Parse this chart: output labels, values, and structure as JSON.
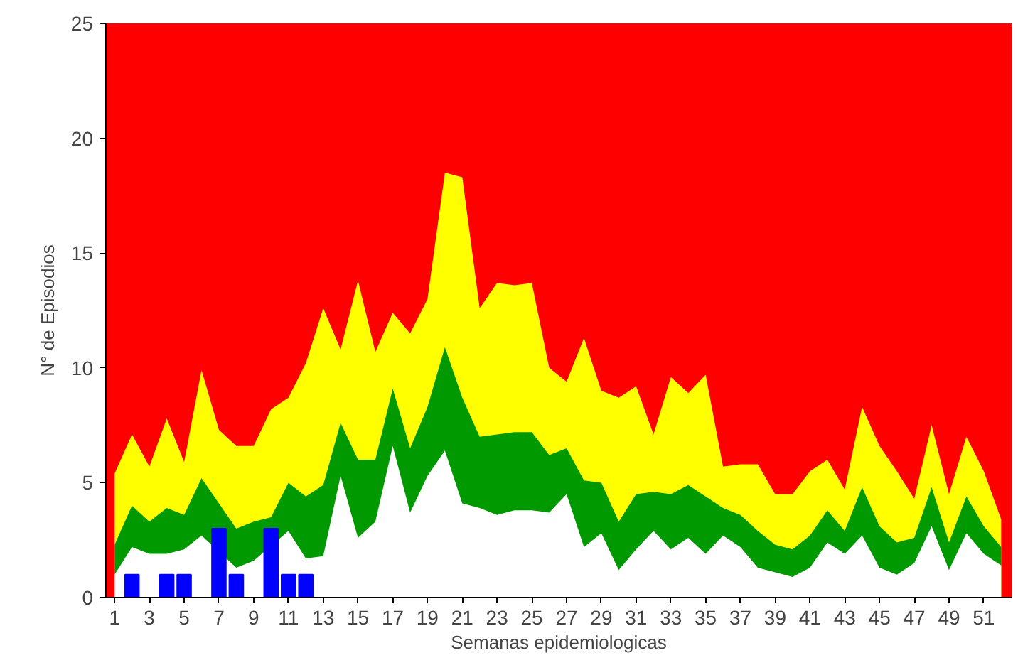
{
  "chart_data": {
    "type": "area",
    "xlabel": "Semanas epidemiologicas",
    "ylabel": "N° de Episodios",
    "x": [
      1,
      2,
      3,
      4,
      5,
      6,
      7,
      8,
      9,
      10,
      11,
      12,
      13,
      14,
      15,
      16,
      17,
      18,
      19,
      20,
      21,
      22,
      23,
      24,
      25,
      26,
      27,
      28,
      29,
      30,
      31,
      32,
      33,
      34,
      35,
      36,
      37,
      38,
      39,
      40,
      41,
      42,
      43,
      44,
      45,
      46,
      47,
      48,
      49,
      50,
      51,
      52
    ],
    "series": [
      {
        "color": "#ffff00",
        "values": [
          5.4,
          7.1,
          5.7,
          7.8,
          5.9,
          9.9,
          7.3,
          6.6,
          6.6,
          8.2,
          8.7,
          10.2,
          12.6,
          10.8,
          13.8,
          10.7,
          12.4,
          11.5,
          13.0,
          18.5,
          18.3,
          12.6,
          13.7,
          13.6,
          13.7,
          10.0,
          9.4,
          11.3,
          9.0,
          8.7,
          9.2,
          7.1,
          9.6,
          8.9,
          9.7,
          5.7,
          5.8,
          5.8,
          4.5,
          4.5,
          5.5,
          6.0,
          4.7,
          8.3,
          6.6,
          5.5,
          4.3,
          7.5,
          4.5,
          7.0,
          5.5,
          3.4
        ]
      },
      {
        "color": "#009900",
        "values": [
          2.3,
          4.0,
          3.3,
          3.9,
          3.6,
          5.2,
          4.1,
          3.0,
          3.3,
          3.5,
          5.0,
          4.4,
          4.9,
          7.6,
          6.0,
          6.0,
          9.1,
          6.5,
          8.3,
          10.9,
          8.7,
          7.0,
          7.1,
          7.2,
          7.2,
          6.2,
          6.5,
          5.1,
          5.0,
          3.3,
          4.5,
          4.6,
          4.5,
          4.9,
          4.4,
          3.9,
          3.6,
          2.9,
          2.3,
          2.1,
          2.7,
          3.8,
          2.9,
          4.8,
          3.1,
          2.4,
          2.6,
          4.8,
          2.4,
          4.4,
          3.1,
          2.2
        ]
      },
      {
        "color": "#ffffff",
        "values": [
          1.0,
          2.2,
          1.9,
          1.9,
          2.1,
          2.7,
          null,
          1.3,
          1.6,
          null,
          2.9,
          1.7,
          1.8,
          5.3,
          2.6,
          3.3,
          6.6,
          3.7,
          5.3,
          6.4,
          4.1,
          3.9,
          3.6,
          3.8,
          3.8,
          3.7,
          4.5,
          2.2,
          2.8,
          1.2,
          2.1,
          2.9,
          2.1,
          2.6,
          1.9,
          2.7,
          2.2,
          1.3,
          1.1,
          0.9,
          1.3,
          2.4,
          1.9,
          2.7,
          1.3,
          1.0,
          1.5,
          3.1,
          1.2,
          2.8,
          1.9,
          1.4
        ]
      },
      {
        "type": "bar",
        "color": "#0000ff",
        "x": [
          2,
          4,
          5,
          7,
          8,
          10,
          11,
          12
        ],
        "values": [
          1,
          1,
          1,
          3,
          1,
          3,
          1,
          1
        ]
      }
    ],
    "bands": [
      {
        "axis": "y",
        "from": 0,
        "to": 25,
        "color": "#ff0000"
      }
    ],
    "xlim": [
      0.5,
      52.6
    ],
    "ylim": [
      0,
      25
    ],
    "xticks": [
      1,
      3,
      5,
      7,
      9,
      11,
      13,
      15,
      17,
      19,
      21,
      23,
      25,
      27,
      29,
      31,
      33,
      35,
      37,
      39,
      41,
      43,
      45,
      47,
      49,
      51
    ],
    "yticks": [
      0,
      5,
      10,
      15,
      20,
      25
    ]
  }
}
